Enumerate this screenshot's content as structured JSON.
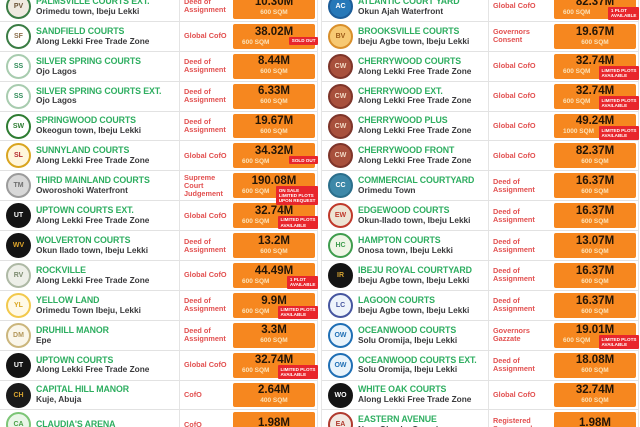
{
  "colors": {
    "price_cell_bg": "#F6871F",
    "name_green": "#2EAE60",
    "location_dark": "#3A3A3C",
    "title_red": "#E25050",
    "badge_red": "#E8262C",
    "price_text": "#241607",
    "sqm_text": "#FBE2B8",
    "row_border": "#E2E2E2"
  },
  "columns": [
    {
      "rows": [
        {
          "name": "PALMSVILLE COURTS EXT.",
          "location": "Orimedu town, Ibeju Lekki",
          "title": "Deed of Assignment",
          "price": "10.30M",
          "sqm": "600 SQM",
          "badge": [],
          "logo": {
            "text": "PV",
            "ring": "#3A7D44",
            "bg": "#EFEAE0",
            "fg": "#6B5436"
          }
        },
        {
          "name": "SANDFIELD COURTS",
          "location": "Along Lekki Free Trade Zone",
          "title": "Global CofO",
          "price": "38.02M",
          "sqm": "600 SQM",
          "badge": [
            "SOLD OUT"
          ],
          "logo": {
            "text": "SF",
            "ring": "#3A7D44",
            "bg": "#FFFFFF",
            "fg": "#8A6D4A"
          }
        },
        {
          "name": "SILVER SPRING COURTS",
          "location": "Ojo Lagos",
          "title": "Deed of Assignment",
          "price": "8.44M",
          "sqm": "600 SQM",
          "badge": [],
          "logo": {
            "text": "SS",
            "ring": "#A8CCAF",
            "bg": "#FFFFFF",
            "fg": "#2E8B57"
          }
        },
        {
          "name": "SILVER SPRING COURTS EXT.",
          "location": "Ojo Lagos",
          "title": "Deed of Assignment",
          "price": "6.33M",
          "sqm": "600 SQM",
          "badge": [],
          "logo": {
            "text": "SS",
            "ring": "#A8CCAF",
            "bg": "#FFFFFF",
            "fg": "#2E8B57"
          }
        },
        {
          "name": "SPRINGWOOD COURTS",
          "location": "Okeogun town, Ibeju Lekki",
          "title": "Deed of Assignment",
          "price": "19.67M",
          "sqm": "600 SQM",
          "badge": [],
          "logo": {
            "text": "SW",
            "ring": "#2E7D32",
            "bg": "#FFFFFF",
            "fg": "#2E7D32"
          }
        },
        {
          "name": "SUNNYLAND COURTS",
          "location": "Along Lekki Free Trade Zone",
          "title": "Global CofO",
          "price": "34.32M",
          "sqm": "600 SQM",
          "badge": [
            "SOLD OUT"
          ],
          "logo": {
            "text": "SL",
            "ring": "#D9A520",
            "bg": "#FFF6DC",
            "fg": "#B3282D"
          }
        },
        {
          "name": "THIRD MAINLAND COURTS",
          "location": "Oworoshoki Waterfront",
          "title": "Supreme Court Judgement",
          "price": "190.08M",
          "sqm": "600 SQM",
          "badge": [
            "ON SALE",
            "LIMITED PLOTS",
            "UPON REQUEST"
          ],
          "logo": {
            "text": "TM",
            "ring": "#9B9B9B",
            "bg": "#D8D8D8",
            "fg": "#6F6F6F"
          }
        },
        {
          "name": "UPTOWN COURTS EXT.",
          "location": "Along Lekki Free Trade Zone",
          "title": "Global CofO",
          "price": "32.74M",
          "sqm": "600 SQM",
          "badge": [
            "LIMITED PLOTS",
            "AVAILABLE"
          ],
          "logo": {
            "text": "UT",
            "ring": "#141414",
            "bg": "#141414",
            "fg": "#FFFFFF"
          }
        },
        {
          "name": "WOLVERTON COURTS",
          "location": "Okun Ilado town, Ibeju Lekki",
          "title": "Deed of Assignment",
          "price": "13.2M",
          "sqm": "600 SQM",
          "badge": [],
          "logo": {
            "text": "WV",
            "ring": "#141414",
            "bg": "#141414",
            "fg": "#E0A62B"
          }
        },
        {
          "name": "ROCKVILLE",
          "location": "Along Lekki Free Trade Zone",
          "title": "Global CofO",
          "price": "44.49M",
          "sqm": "600 SQM",
          "badge": [
            "1 PLOT",
            "AVAILABLE"
          ],
          "logo": {
            "text": "RV",
            "ring": "#AEB9A5",
            "bg": "#EDEFE8",
            "fg": "#7C8B6F"
          }
        },
        {
          "name": "YELLOW LAND",
          "location": "Orimedu Town Ibeju, Lekki",
          "title": "Deed of Assignment",
          "price": "9.9M",
          "sqm": "600 SQM",
          "badge": [
            "LIMITED PLOTS",
            "AVAILABLE"
          ],
          "logo": {
            "text": "YL",
            "ring": "#F2C94C",
            "bg": "#FFF9E6",
            "fg": "#D9A520"
          }
        },
        {
          "name": "DRUHILL MANOR",
          "location": "Epe",
          "title": "Deed of Assignment",
          "price": "3.3M",
          "sqm": "600 SQM",
          "badge": [],
          "logo": {
            "text": "DM",
            "ring": "#CBB67C",
            "bg": "#FAF6EA",
            "fg": "#B3975A"
          }
        },
        {
          "name": "UPTOWN COURTS",
          "location": "Along Lekki Free Trade Zone",
          "title": "Global CofO",
          "price": "32.74M",
          "sqm": "600 SQM",
          "badge": [
            "LIMITED PLOTS",
            "AVAILABLE"
          ],
          "logo": {
            "text": "UT",
            "ring": "#141414",
            "bg": "#141414",
            "fg": "#FFFFFF"
          }
        },
        {
          "name": "CAPITAL HILL MANOR",
          "location": "Kuje, Abuja",
          "title": "CofO",
          "price": "2.64M",
          "sqm": "400 SQM",
          "badge": [],
          "logo": {
            "text": "CH",
            "ring": "#1A1A1A",
            "bg": "#1A1A1A",
            "fg": "#D8A431"
          }
        },
        {
          "name": "CLAUDIA'S ARENA",
          "location": "",
          "title": "CofO",
          "price": "1.98M",
          "sqm": "",
          "badge": [],
          "logo": {
            "text": "CA",
            "ring": "#7CC576",
            "bg": "#EAF6E8",
            "fg": "#4AA147"
          }
        }
      ]
    },
    {
      "rows": [
        {
          "name": "ATLANTIC COURT YARD",
          "location": "Okun Ajah Waterfront",
          "title": "Global CofO",
          "price": "82.37M",
          "sqm": "600 SQM",
          "badge": [
            "1 PLOT",
            "AVAILABLE"
          ],
          "logo": {
            "text": "AC",
            "ring": "#1C5D99",
            "bg": "#2678B8",
            "fg": "#FFFFFF"
          }
        },
        {
          "name": "BROOKSVILLE COURTS",
          "location": "Ibeju Agbe town, Ibeju Lekki",
          "title": "Governors Consent",
          "price": "19.67M",
          "sqm": "600 SQM",
          "badge": [],
          "logo": {
            "text": "BV",
            "ring": "#D98F2B",
            "bg": "#F7C973",
            "fg": "#9C5A18"
          }
        },
        {
          "name": "CHERRYWOOD COURTS",
          "location": "Along Lekki Free Trade Zone",
          "title": "Global CofO",
          "price": "32.74M",
          "sqm": "600 SQM",
          "badge": [
            "LIMITED PLOTS",
            "AVAILABLE"
          ],
          "logo": {
            "text": "CW",
            "ring": "#7E352A",
            "bg": "#A8503C",
            "fg": "#F3D9C4"
          }
        },
        {
          "name": "CHERRYWOOD EXT.",
          "location": "Along Lekki Free Trade Zone",
          "title": "Global CofO",
          "price": "32.74M",
          "sqm": "600 SQM",
          "badge": [
            "LIMITED PLOTS",
            "AVAILABLE"
          ],
          "logo": {
            "text": "CW",
            "ring": "#7E352A",
            "bg": "#A8503C",
            "fg": "#F3D9C4"
          }
        },
        {
          "name": "CHERRYWOOD PLUS",
          "location": "Along Lekki Free Trade Zone",
          "title": "Global CofO",
          "price": "49.24M",
          "sqm": "1000 SQM",
          "badge": [
            "LIMITED PLOTS",
            "AVAILABLE"
          ],
          "logo": {
            "text": "CW",
            "ring": "#7E352A",
            "bg": "#A8503C",
            "fg": "#F3D9C4"
          }
        },
        {
          "name": "CHERRYWOOD FRONT",
          "location": "Along Lekki Free Trade Zone",
          "title": "Global CofO",
          "price": "82.37M",
          "sqm": "600 SQM",
          "badge": [],
          "logo": {
            "text": "CW",
            "ring": "#7E352A",
            "bg": "#A8503C",
            "fg": "#F3D9C4"
          }
        },
        {
          "name": "COMMERCIAL COURTYARD",
          "location": "Orimedu Town",
          "title": "Deed of Assignment",
          "price": "16.37M",
          "sqm": "600 SQM",
          "badge": [],
          "logo": {
            "text": "CC",
            "ring": "#2B6F8C",
            "bg": "#3D88A8",
            "fg": "#FFFFFF"
          }
        },
        {
          "name": "EDGEWOOD COURTS",
          "location": "Okun-Ilado town, Ibeju Lekki",
          "title": "Deed of Assignment",
          "price": "16.37M",
          "sqm": "600 SQM",
          "badge": [],
          "logo": {
            "text": "EW",
            "ring": "#C0392B",
            "bg": "#EDE4D3",
            "fg": "#C0392B"
          }
        },
        {
          "name": "HAMPTON COURTS",
          "location": "Onosa town, Ibeju Lekki",
          "title": "Deed of Assignment",
          "price": "13.07M",
          "sqm": "600 SQM",
          "badge": [],
          "logo": {
            "text": "HC",
            "ring": "#3F9D4E",
            "bg": "#F0F6E6",
            "fg": "#3F9D4E"
          }
        },
        {
          "name": "IBEJU ROYAL COURTYARD",
          "location": "Ibeju Agbe town, Ibeju Lekki",
          "title": "Deed of Assignment",
          "price": "16.37M",
          "sqm": "600 SQM",
          "badge": [],
          "logo": {
            "text": "IR",
            "ring": "#141414",
            "bg": "#141414",
            "fg": "#D8A431"
          }
        },
        {
          "name": "LAGOON COURTS",
          "location": "Ibeju Agbe town, Ibeju Lekki",
          "title": "Deed of Assignment",
          "price": "16.37M",
          "sqm": "600 SQM",
          "badge": [],
          "logo": {
            "text": "LC",
            "ring": "#4656A0",
            "bg": "#EEF4FB",
            "fg": "#4656A0"
          }
        },
        {
          "name": "OCEANWOOD COURTS",
          "location": "Solu Oromija, Ibeju Lekki",
          "title": "Governors Gazzate",
          "price": "19.01M",
          "sqm": "600 SQM",
          "badge": [
            "LIMITED PLOTS",
            "AVAILABLE"
          ],
          "logo": {
            "text": "OW",
            "ring": "#1F6FB5",
            "bg": "#E8F3FB",
            "fg": "#1F6FB5"
          }
        },
        {
          "name": "OCEANWOOD COURTS EXT.",
          "location": "Solu Oromija, Ibeju Lekki",
          "title": "Deed of Assignment",
          "price": "18.08M",
          "sqm": "600 SQM",
          "badge": [],
          "logo": {
            "text": "OW",
            "ring": "#1F6FB5",
            "bg": "#E8F3FB",
            "fg": "#1F6FB5"
          }
        },
        {
          "name": "WHITE OAK COURTS",
          "location": "Along Lekki Free Trade Zone",
          "title": "Global CofO",
          "price": "32.74M",
          "sqm": "600 SQM",
          "badge": [],
          "logo": {
            "text": "WO",
            "ring": "#141414",
            "bg": "#141414",
            "fg": "#FFFFFF"
          }
        },
        {
          "name": "EASTERN AVENUE",
          "location": "Ngor Okpala, Owerri",
          "title": "Registered Survey and",
          "price": "1.98M",
          "sqm": "",
          "badge": [],
          "logo": {
            "text": "EA",
            "ring": "#B03A2E",
            "bg": "#F2E8E2",
            "fg": "#B03A2E"
          }
        }
      ]
    }
  ]
}
